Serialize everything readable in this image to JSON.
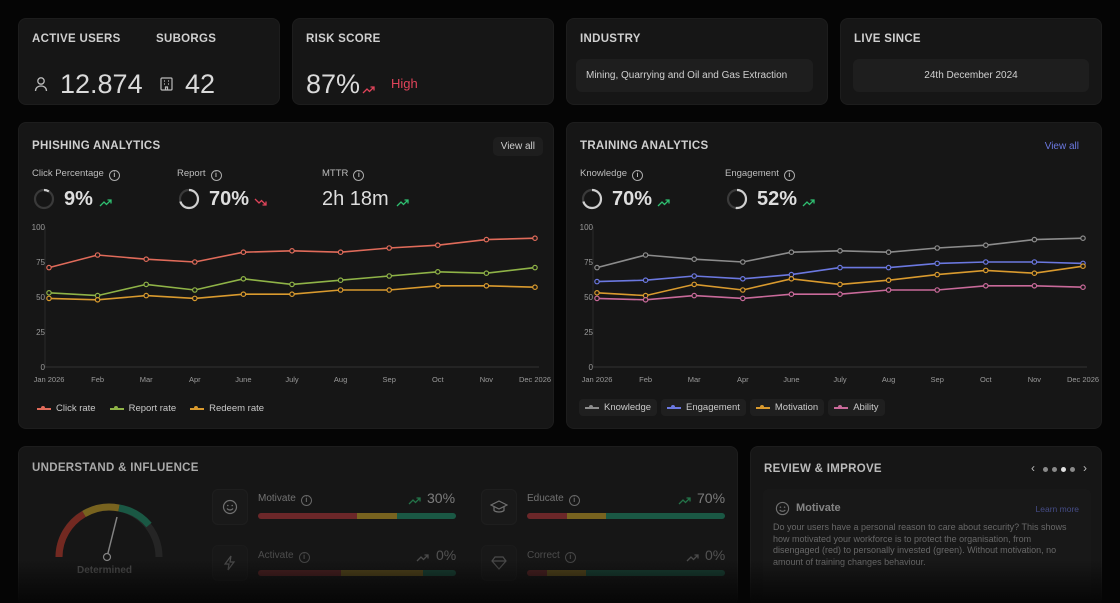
{
  "stats": {
    "active_users_label": "ACTIVE USERS",
    "active_users_value": "12.874",
    "suborgs_label": "SUBORGS",
    "suborgs_value": "42",
    "risk_label": "RISK SCORE",
    "risk_value": "87%",
    "risk_level": "High",
    "industry_label": "INDUSTRY",
    "industry_value": "Mining, Quarrying and Oil and Gas Extraction",
    "live_label": "LIVE SINCE",
    "live_value": "24th December 2024"
  },
  "phishing": {
    "title": "PHISHING ANALYTICS",
    "view_all": "View all",
    "metrics": [
      {
        "label": "Click Percentage",
        "value": "9%",
        "trend": "up",
        "ring": 0.09
      },
      {
        "label": "Report",
        "value": "70%",
        "trend": "down",
        "ring": 0.7
      },
      {
        "label": "MTTR",
        "value": "2h 18m",
        "trend": "up"
      }
    ]
  },
  "training": {
    "title": "TRAINING ANALYTICS",
    "view_all": "View all",
    "metrics": [
      {
        "label": "Knowledge",
        "value": "70%",
        "trend": "up",
        "ring": 0.7
      },
      {
        "label": "Engagement",
        "value": "52%",
        "trend": "up",
        "ring": 0.52
      }
    ]
  },
  "chart_data": [
    {
      "type": "line",
      "x": [
        "Jan 2026",
        "Feb",
        "Mar",
        "Apr",
        "June",
        "July",
        "Aug",
        "Sep",
        "Oct",
        "Nov",
        "Dec 2026"
      ],
      "ylim": [
        0,
        100
      ],
      "yticks": [
        0,
        25,
        50,
        75,
        100
      ],
      "grid": false,
      "legend_position": "bottom-left",
      "series": [
        {
          "name": "Click rate",
          "color": "#e06b5a",
          "values": [
            71,
            80,
            77,
            75,
            82,
            83,
            82,
            85,
            87,
            91,
            92
          ]
        },
        {
          "name": "Report rate",
          "color": "#8fb347",
          "values": [
            53,
            51,
            59,
            55,
            63,
            59,
            62,
            65,
            68,
            67,
            71
          ]
        },
        {
          "name": "Redeem rate",
          "color": "#d99a2e",
          "values": [
            49,
            48,
            51,
            49,
            52,
            52,
            55,
            55,
            58,
            58,
            57
          ]
        }
      ]
    },
    {
      "type": "line",
      "x": [
        "Jan 2026",
        "Feb",
        "Mar",
        "Apr",
        "June",
        "July",
        "Aug",
        "Sep",
        "Oct",
        "Nov",
        "Dec 2026"
      ],
      "ylim": [
        0,
        100
      ],
      "yticks": [
        0,
        25,
        50,
        75,
        100
      ],
      "grid": false,
      "legend_position": "bottom-left",
      "series": [
        {
          "name": "Knowledge",
          "color": "#8c8c8c",
          "values": [
            71,
            80,
            77,
            75,
            82,
            83,
            82,
            85,
            87,
            91,
            92
          ]
        },
        {
          "name": "Engagement",
          "color": "#6b78e0",
          "values": [
            61,
            62,
            65,
            63,
            66,
            71,
            71,
            74,
            75,
            75,
            74
          ]
        },
        {
          "name": "Motivation",
          "color": "#d99a2e",
          "values": [
            53,
            51,
            59,
            55,
            63,
            59,
            62,
            66,
            69,
            67,
            72
          ]
        },
        {
          "name": "Ability",
          "color": "#c96a9a",
          "values": [
            49,
            48,
            51,
            49,
            52,
            52,
            55,
            55,
            58,
            58,
            57
          ]
        }
      ]
    }
  ],
  "understand": {
    "title": "UNDERSTAND & INFLUENCE",
    "gauge_label": "Determined",
    "gauge_value": 0.6,
    "items": [
      {
        "label": "Motivate",
        "value": "30%",
        "level": 0.3
      },
      {
        "label": "Educate",
        "value": "70%",
        "level": 0.7
      },
      {
        "label": "Activate",
        "value": "0%",
        "level": 0
      },
      {
        "label": "Correct",
        "value": "0%",
        "level": 0
      }
    ]
  },
  "review": {
    "title": "REVIEW & IMPROVE",
    "card_title": "Motivate",
    "learn_more": "Learn more",
    "body": "Do your users have a personal reason to care about security? This shows how motivated your workforce is to protect the organisation, from disengaged (red) to personally invested (green). Without motivation, no amount of training changes behaviour.",
    "pages": 4,
    "active_page": 2
  },
  "colors": {
    "up": "#2fbf71",
    "down": "#e0445a",
    "high": "#e0445a",
    "view_all_training": "#6b78e0"
  }
}
